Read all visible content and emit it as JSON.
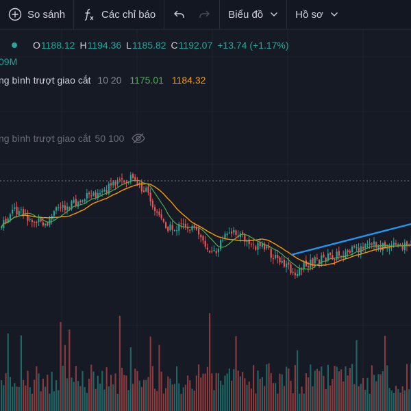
{
  "toolbar": {
    "compare_label": "So sánh",
    "indicators_label": "Các chỉ báo",
    "chart_type_label": "Biểu đồ",
    "profile_label": "Hồ sơ"
  },
  "legend": {
    "ohlc": {
      "o_key": "O",
      "o_val": "1188.12",
      "h_key": "H",
      "h_val": "1194.36",
      "l_key": "L",
      "l_val": "1185.82",
      "c_key": "C",
      "c_val": "1192.07",
      "change": "+13.74 (+1.17%)"
    },
    "volume_text": "09M",
    "ma_cross_1": {
      "name": "ng bình trượt giao cắt",
      "params": "10 20",
      "fast_value": "1175.01",
      "slow_value": "1184.32"
    },
    "ma_cross_2": {
      "name": "ng bình trượt giao cắt",
      "params": "50 100"
    }
  },
  "colors": {
    "background": "#161a25",
    "up": "#26a69a",
    "down": "#ef5350",
    "ma_fast": "#4caf50",
    "ma_slow": "#ff9800",
    "trendline": "#2196f3"
  },
  "icons": [
    "plus-circle-icon",
    "function-icon",
    "undo-icon",
    "redo-icon",
    "chevron-down-icon",
    "eye-off-icon",
    "status-dot-icon"
  ]
}
